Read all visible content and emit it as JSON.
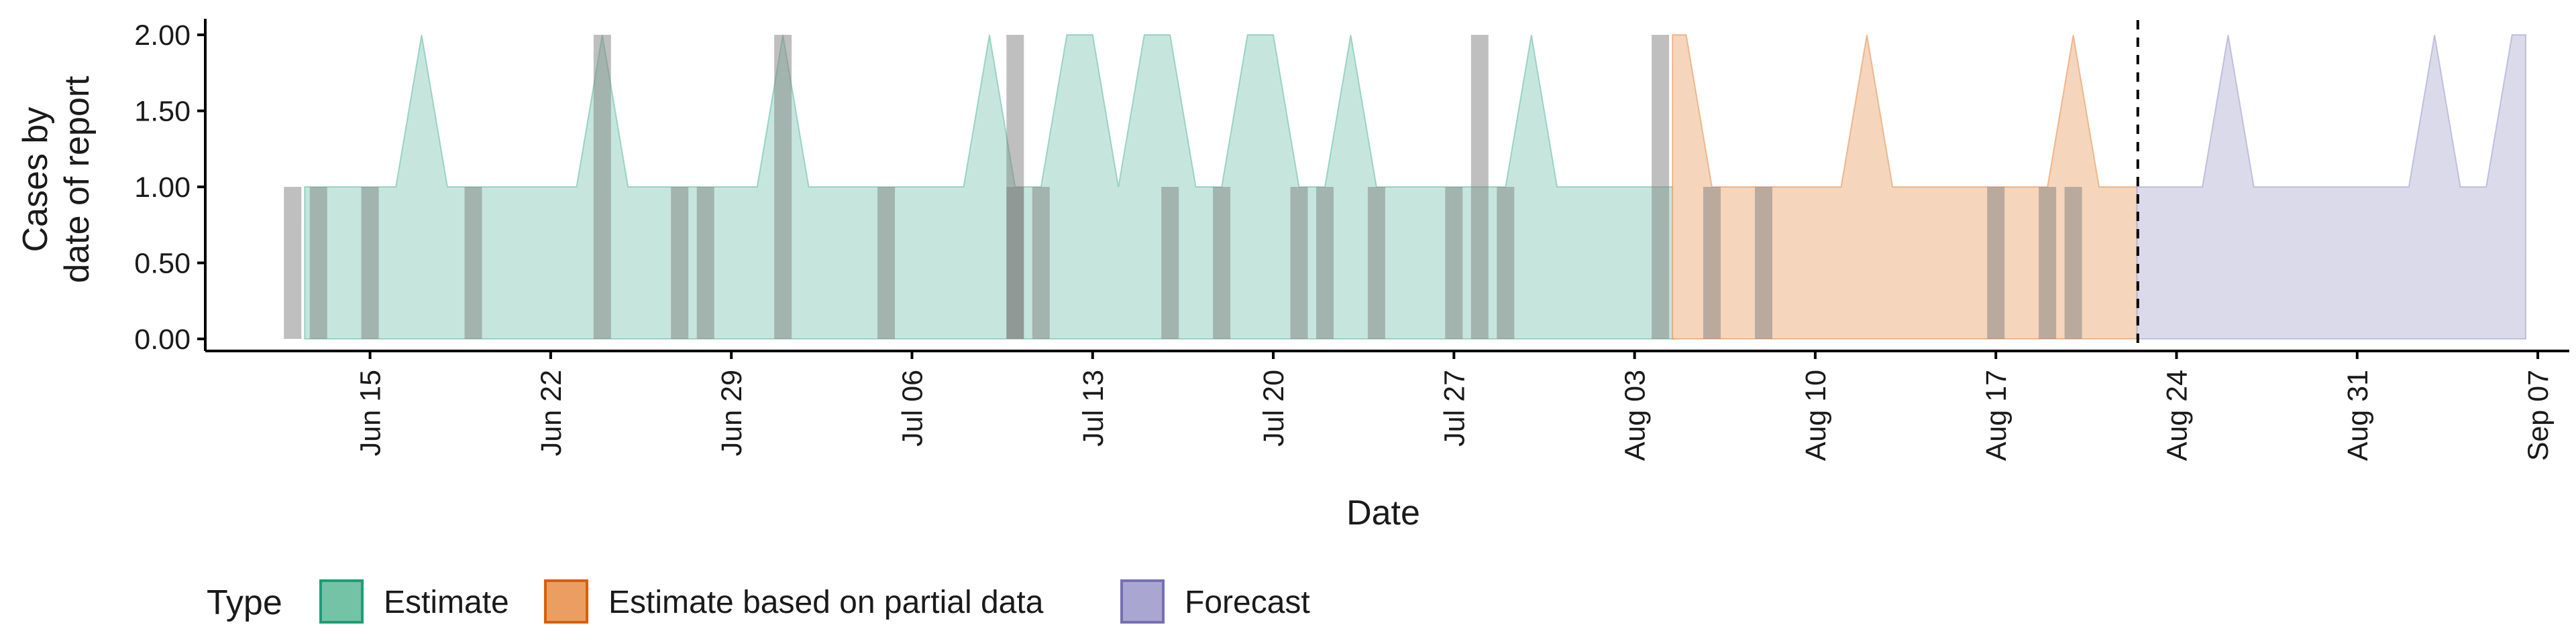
{
  "chart_data": {
    "type": "area",
    "title": "",
    "xlabel": "Date",
    "ylabel": [
      "Cases by",
      "date of report"
    ],
    "ylim": [
      0,
      2
    ],
    "y_ticks": [
      "0.00",
      "0.50",
      "1.00",
      "1.50",
      "2.00"
    ],
    "x_range": [
      "2020-06-06",
      "2020-09-09"
    ],
    "x_tick_labels": [
      "Jun 15",
      "Jun 22",
      "Jun 29",
      "Jul 06",
      "Jul 13",
      "Jul 20",
      "Jul 27",
      "Aug 03",
      "Aug 10",
      "Aug 17",
      "Aug 24",
      "Aug 31",
      "Sep 07"
    ],
    "x_tick_dates": [
      "2020-06-15",
      "2020-06-22",
      "2020-06-29",
      "2020-07-06",
      "2020-07-13",
      "2020-07-20",
      "2020-07-27",
      "2020-08-03",
      "2020-08-10",
      "2020-08-17",
      "2020-08-24",
      "2020-08-31",
      "2020-09-07"
    ],
    "forecast_date": "2020-08-22",
    "grid": false,
    "legend_position": "bottom",
    "legend_title": "Type",
    "series": [
      {
        "name": "Estimate",
        "color": "#1b9e77",
        "fill": "#c6e6dd",
        "points": [
          [
            "2020-06-13",
            1
          ],
          [
            "2020-06-14",
            1
          ],
          [
            "2020-06-15",
            1
          ],
          [
            "2020-06-16",
            1
          ],
          [
            "2020-06-17",
            2
          ],
          [
            "2020-06-18",
            1
          ],
          [
            "2020-06-19",
            1
          ],
          [
            "2020-06-20",
            1
          ],
          [
            "2020-06-21",
            1
          ],
          [
            "2020-06-22",
            1
          ],
          [
            "2020-06-23",
            1
          ],
          [
            "2020-06-24",
            2
          ],
          [
            "2020-06-25",
            1
          ],
          [
            "2020-06-26",
            1
          ],
          [
            "2020-06-27",
            1
          ],
          [
            "2020-06-28",
            1
          ],
          [
            "2020-06-29",
            1
          ],
          [
            "2020-06-30",
            1
          ],
          [
            "2020-07-01",
            2
          ],
          [
            "2020-07-02",
            1
          ],
          [
            "2020-07-03",
            1
          ],
          [
            "2020-07-04",
            1
          ],
          [
            "2020-07-05",
            1
          ],
          [
            "2020-07-06",
            1
          ],
          [
            "2020-07-07",
            1
          ],
          [
            "2020-07-08",
            1
          ],
          [
            "2020-07-09",
            2
          ],
          [
            "2020-07-10",
            1
          ],
          [
            "2020-07-11",
            1
          ],
          [
            "2020-07-12",
            2
          ],
          [
            "2020-07-13",
            2
          ],
          [
            "2020-07-14",
            1
          ],
          [
            "2020-07-15",
            2
          ],
          [
            "2020-07-16",
            2
          ],
          [
            "2020-07-17",
            1
          ],
          [
            "2020-07-18",
            1
          ],
          [
            "2020-07-19",
            2
          ],
          [
            "2020-07-20",
            2
          ],
          [
            "2020-07-21",
            1
          ],
          [
            "2020-07-22",
            1
          ],
          [
            "2020-07-23",
            2
          ],
          [
            "2020-07-24",
            1
          ],
          [
            "2020-07-25",
            1
          ],
          [
            "2020-07-26",
            1
          ],
          [
            "2020-07-27",
            1
          ],
          [
            "2020-07-28",
            1
          ],
          [
            "2020-07-29",
            1
          ],
          [
            "2020-07-30",
            2
          ],
          [
            "2020-07-31",
            1
          ],
          [
            "2020-08-01",
            1
          ],
          [
            "2020-08-02",
            1
          ],
          [
            "2020-08-03",
            1
          ],
          [
            "2020-08-04",
            1
          ]
        ]
      },
      {
        "name": "Estimate based on partial data",
        "color": "#d95f02",
        "fill": "#f5d5bc",
        "points": [
          [
            "2020-08-05",
            2
          ],
          [
            "2020-08-06",
            1
          ],
          [
            "2020-08-07",
            1
          ],
          [
            "2020-08-08",
            1
          ],
          [
            "2020-08-09",
            1
          ],
          [
            "2020-08-10",
            1
          ],
          [
            "2020-08-11",
            1
          ],
          [
            "2020-08-12",
            2
          ],
          [
            "2020-08-13",
            1
          ],
          [
            "2020-08-14",
            1
          ],
          [
            "2020-08-15",
            1
          ],
          [
            "2020-08-16",
            1
          ],
          [
            "2020-08-17",
            1
          ],
          [
            "2020-08-18",
            1
          ],
          [
            "2020-08-19",
            1
          ],
          [
            "2020-08-20",
            2
          ],
          [
            "2020-08-21",
            1
          ],
          [
            "2020-08-22",
            1
          ]
        ]
      },
      {
        "name": "Forecast",
        "color": "#7570b3",
        "fill": "#dbdaeb",
        "points": [
          [
            "2020-08-23",
            1
          ],
          [
            "2020-08-24",
            1
          ],
          [
            "2020-08-25",
            1
          ],
          [
            "2020-08-26",
            2
          ],
          [
            "2020-08-27",
            1
          ],
          [
            "2020-08-28",
            1
          ],
          [
            "2020-08-29",
            1
          ],
          [
            "2020-08-30",
            1
          ],
          [
            "2020-08-31",
            1
          ],
          [
            "2020-09-01",
            1
          ],
          [
            "2020-09-02",
            1
          ],
          [
            "2020-09-03",
            2
          ],
          [
            "2020-09-04",
            1
          ],
          [
            "2020-09-05",
            1
          ],
          [
            "2020-09-06",
            2
          ]
        ]
      }
    ],
    "reported_cases": {
      "color": "#7f7f7f",
      "points": [
        [
          "2020-06-12",
          1
        ],
        [
          "2020-06-13",
          1
        ],
        [
          "2020-06-15",
          1
        ],
        [
          "2020-06-19",
          1
        ],
        [
          "2020-06-24",
          2
        ],
        [
          "2020-06-27",
          1
        ],
        [
          "2020-06-28",
          1
        ],
        [
          "2020-07-01",
          2
        ],
        [
          "2020-07-05",
          1
        ],
        [
          "2020-07-10",
          2
        ],
        [
          "2020-07-10",
          1
        ],
        [
          "2020-07-11",
          1
        ],
        [
          "2020-07-16",
          1
        ],
        [
          "2020-07-18",
          1
        ],
        [
          "2020-07-21",
          1
        ],
        [
          "2020-07-22",
          1
        ],
        [
          "2020-07-24",
          1
        ],
        [
          "2020-07-27",
          1
        ],
        [
          "2020-07-28",
          2
        ],
        [
          "2020-07-29",
          1
        ],
        [
          "2020-08-04",
          2
        ],
        [
          "2020-08-06",
          1
        ],
        [
          "2020-08-08",
          1
        ],
        [
          "2020-08-17",
          1
        ],
        [
          "2020-08-19",
          1
        ],
        [
          "2020-08-20",
          1
        ]
      ]
    }
  }
}
